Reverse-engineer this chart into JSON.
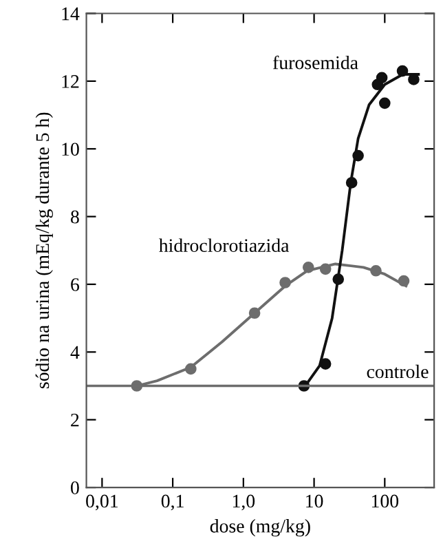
{
  "chart_data": {
    "type": "scatter",
    "xlabel": "dose (mg/kg)",
    "ylabel": "sódio na urina (mEq/kg durante 5 h)",
    "log": "x",
    "xlim": [
      0.006,
      500
    ],
    "xticks": [
      {
        "value": 0.01,
        "label": "0,01"
      },
      {
        "value": 0.1,
        "label": "0,1"
      },
      {
        "value": 1,
        "label": "1,0"
      },
      {
        "value": 10,
        "label": "10"
      },
      {
        "value": 100,
        "label": "100"
      }
    ],
    "ylim": [
      0,
      14
    ],
    "yticks": [
      0,
      2,
      4,
      6,
      8,
      10,
      12,
      14
    ],
    "grid": false,
    "marker": "circle",
    "series": [
      {
        "type": "line",
        "marker": "none",
        "color": "#6d6d6d",
        "x": [
          0.031,
          0.06,
          0.18,
          0.5,
          1.44,
          3.9,
          8,
          20,
          50,
          100,
          200
        ],
        "values": [
          3.0,
          3.15,
          3.55,
          4.3,
          5.15,
          5.95,
          6.4,
          6.6,
          6.5,
          6.3,
          5.95
        ]
      },
      {
        "type": "line",
        "marker": "none",
        "color": "#111111",
        "x": [
          7.5,
          12,
          18,
          25,
          33,
          42,
          60,
          100,
          180,
          300
        ],
        "values": [
          3.0,
          3.6,
          5.0,
          7.0,
          9.0,
          10.3,
          11.3,
          11.9,
          12.2,
          12.2
        ]
      },
      {
        "name": "hidroclorotiazida",
        "color": "#6d6d6d",
        "x": [
          0.031,
          0.18,
          1.44,
          3.9,
          8.3,
          14.5,
          75,
          186
        ],
        "values": [
          3.0,
          3.5,
          5.15,
          6.05,
          6.5,
          6.45,
          6.4,
          6.1
        ]
      },
      {
        "name": "furosemida",
        "color": "#111111",
        "x": [
          7.2,
          14.5,
          22,
          34,
          42,
          79,
          91,
          100,
          178,
          257
        ],
        "values": [
          3.0,
          3.65,
          6.15,
          9.0,
          9.8,
          11.9,
          12.1,
          11.35,
          12.3,
          12.05
        ]
      }
    ],
    "ref_lines": [
      {
        "axis": "y",
        "value": 3,
        "label": "controle",
        "color": "#6d6d6d"
      }
    ]
  }
}
